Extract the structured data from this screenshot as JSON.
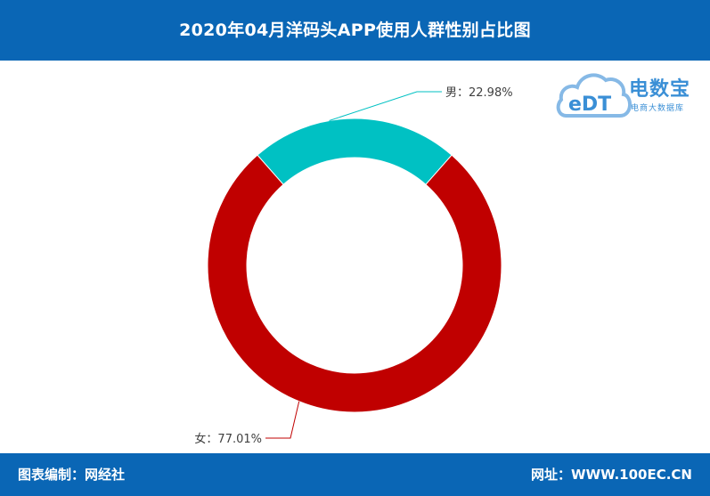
{
  "title": "2020年04月洋码头APP使用人群性别占比图",
  "footer": {
    "left": "图表编制：网经社",
    "right": "网址：WWW.100EC.CN"
  },
  "logo": {
    "name": "电数宝",
    "sub": "电商大数据库",
    "mark": "eDT"
  },
  "colors": {
    "header": "#0a66b5",
    "male": "#00c1c3",
    "female": "#c00000"
  },
  "chart_data": {
    "type": "pie",
    "donut": true,
    "categories": [
      "男",
      "女"
    ],
    "values": [
      22.98,
      77.01
    ],
    "labels": [
      "男：22.98%",
      "女：77.01%"
    ],
    "colors": [
      "#00c1c3",
      "#c00000"
    ]
  }
}
